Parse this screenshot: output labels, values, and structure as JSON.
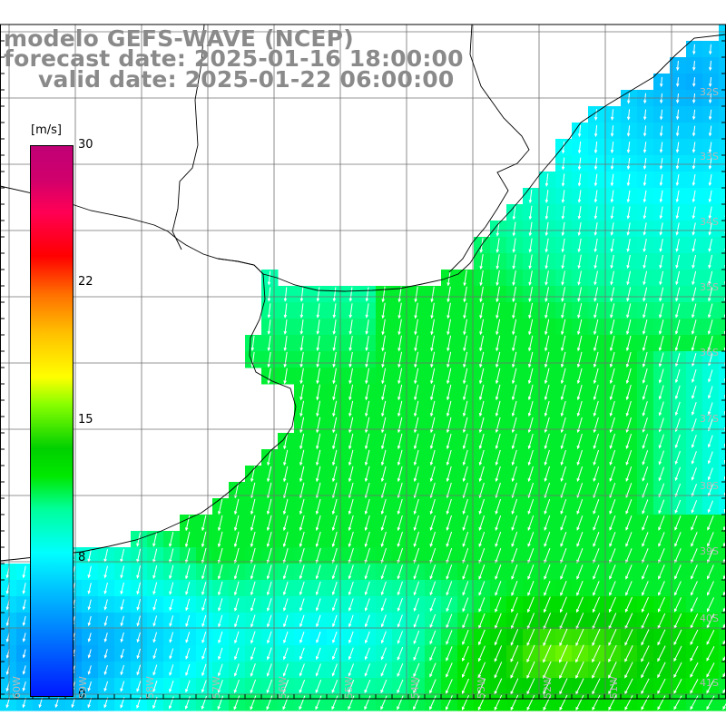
{
  "title": {
    "line1": "modelo GEFS-WAVE (NCEP)",
    "line2": "forecast date: 2025-01-16 18:00:00",
    "line3": "valid date: 2025-01-22 06:00:00"
  },
  "colorbar": {
    "unit": "[m/s]",
    "ticks": [
      "30",
      "22",
      "15",
      "8",
      "0"
    ],
    "min": 0,
    "max": 30,
    "colors": [
      "#0018ff",
      "#00c8ff",
      "#00ffff",
      "#00e800",
      "#88ff00",
      "#ffff00",
      "#ff7000",
      "#ff0000",
      "#c00076"
    ]
  },
  "map": {
    "region": "South Atlantic",
    "field": "wind speed with direction arrows",
    "lat_labels": [
      "32S",
      "33S",
      "34S",
      "35S",
      "36S",
      "37S",
      "38S",
      "39S",
      "40S",
      "41S"
    ],
    "lon_labels": [
      "60W",
      "59W",
      "58W",
      "57W",
      "56W",
      "55W",
      "54W",
      "53W",
      "52W",
      "51W"
    ],
    "land_color": "#ffffff",
    "grid_color": "#707070",
    "arrow_color": "#ffffff"
  }
}
